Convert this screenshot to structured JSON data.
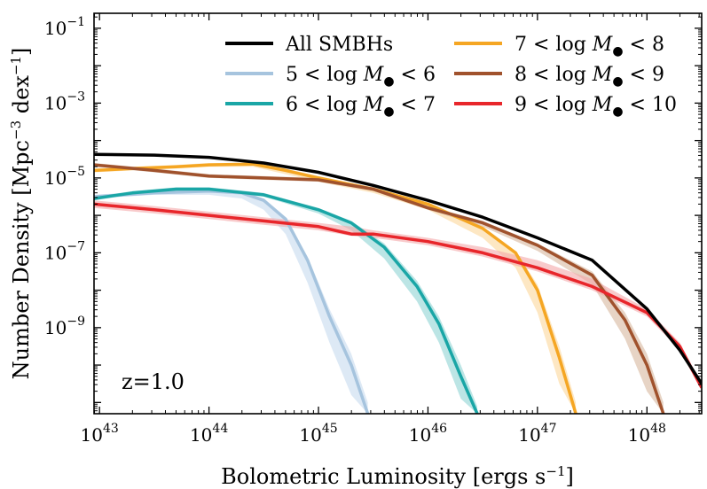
{
  "chart_data": {
    "type": "line",
    "title": "",
    "xlabel": "Bolometric Luminosity [ergs s",
    "xlabel_sup": "−1",
    "xlabel_end": "]",
    "ylabel": "Number Density [Mpc",
    "ylabel_sup1": "−3",
    "ylabel_mid": " dex",
    "ylabel_sup2": "−1",
    "ylabel_end": "]",
    "annotation": "z=1.0",
    "xscale": "log",
    "yscale": "log",
    "xlim_log10": [
      42.95,
      48.5
    ],
    "ylim_log10": [
      -11.3,
      -0.6
    ],
    "x_ticks": [
      {
        "log": 43,
        "mant": "10",
        "exp": "43"
      },
      {
        "log": 44,
        "mant": "10",
        "exp": "44"
      },
      {
        "log": 45,
        "mant": "10",
        "exp": "45"
      },
      {
        "log": 46,
        "mant": "10",
        "exp": "46"
      },
      {
        "log": 47,
        "mant": "10",
        "exp": "47"
      },
      {
        "log": 48,
        "mant": "10",
        "exp": "48"
      }
    ],
    "y_ticks": [
      {
        "log": -1,
        "mant": "10",
        "exp": "−1"
      },
      {
        "log": -3,
        "mant": "10",
        "exp": "−3"
      },
      {
        "log": -5,
        "mant": "10",
        "exp": "−5"
      },
      {
        "log": -7,
        "mant": "10",
        "exp": "−7"
      },
      {
        "log": -9,
        "mant": "10",
        "exp": "−9"
      }
    ],
    "series": [
      {
        "name": "All SMBHs",
        "legend_prefix": "All SMBHs",
        "legend_suffix": "",
        "color": "#000000",
        "band_color": "",
        "x": [
          42.95,
          43.5,
          44.0,
          44.5,
          45.0,
          45.5,
          46.0,
          46.5,
          47.0,
          47.5,
          48.0,
          48.3,
          48.5
        ],
        "y": [
          -4.37,
          -4.39,
          -4.45,
          -4.6,
          -4.85,
          -5.2,
          -5.6,
          -6.05,
          -6.6,
          -7.2,
          -8.5,
          -9.6,
          -10.5
        ]
      },
      {
        "name": "5 < log M < 6",
        "legend_prefix": "5 < log ",
        "legend_suffix": " < 6",
        "color": "#a6c4de",
        "band_color": "#c6dbef",
        "x": [
          42.95,
          43.5,
          44.0,
          44.3,
          44.5,
          44.7,
          44.9,
          45.1,
          45.3,
          45.45
        ],
        "y": [
          -5.5,
          -5.4,
          -5.35,
          -5.4,
          -5.6,
          -6.1,
          -7.2,
          -8.7,
          -10.0,
          -11.3
        ],
        "band_upper": [
          -5.45,
          -5.35,
          -5.3,
          -5.35,
          -5.55,
          -6.05,
          -7.1,
          -8.5,
          -9.7,
          -11.0
        ],
        "band_lower": [
          -5.55,
          -5.45,
          -5.45,
          -5.55,
          -5.85,
          -6.5,
          -7.8,
          -9.4,
          -10.8,
          -11.3
        ]
      },
      {
        "name": "6 < log M < 7",
        "legend_prefix": "6 < log ",
        "legend_suffix": " < 7",
        "color": "#1aa6a6",
        "band_color": "#8fd3d3",
        "x": [
          42.95,
          43.3,
          43.7,
          44.0,
          44.5,
          45.0,
          45.3,
          45.6,
          45.9,
          46.1,
          46.3,
          46.45
        ],
        "y": [
          -5.55,
          -5.4,
          -5.3,
          -5.3,
          -5.45,
          -5.85,
          -6.2,
          -6.85,
          -7.9,
          -8.9,
          -10.3,
          -11.3
        ],
        "band_upper": [
          -5.5,
          -5.35,
          -5.25,
          -5.25,
          -5.4,
          -5.8,
          -6.15,
          -6.75,
          -7.75,
          -8.7,
          -10.0,
          -11.1
        ],
        "band_lower": [
          -5.6,
          -5.45,
          -5.35,
          -5.35,
          -5.5,
          -5.95,
          -6.4,
          -7.15,
          -8.3,
          -9.4,
          -10.9,
          -11.3
        ]
      },
      {
        "name": "7 < log M < 8",
        "legend_prefix": "7 < log ",
        "legend_suffix": " < 8",
        "color": "#f5a623",
        "band_color": "#fcd79b",
        "x": [
          42.95,
          43.3,
          43.7,
          44.0,
          44.4,
          44.7,
          45.0,
          45.5,
          46.0,
          46.5,
          46.8,
          47.0,
          47.2,
          47.35
        ],
        "y": [
          -4.8,
          -4.75,
          -4.7,
          -4.65,
          -4.63,
          -4.8,
          -5.0,
          -5.3,
          -5.7,
          -6.35,
          -7.0,
          -8.0,
          -9.8,
          -11.3
        ],
        "band_upper": [
          -4.75,
          -4.7,
          -4.65,
          -4.6,
          -4.6,
          -4.75,
          -4.95,
          -5.25,
          -5.65,
          -6.3,
          -6.95,
          -7.85,
          -9.5,
          -11.0
        ],
        "band_lower": [
          -4.85,
          -4.8,
          -4.75,
          -4.7,
          -4.7,
          -4.9,
          -5.1,
          -5.4,
          -5.85,
          -6.6,
          -7.4,
          -8.6,
          -10.5,
          -11.3
        ]
      },
      {
        "name": "8 < log M < 9",
        "legend_prefix": "8 < log ",
        "legend_suffix": " < 9",
        "color": "#a0522d",
        "band_color": "#d7b79f",
        "x": [
          42.95,
          43.5,
          44.0,
          44.5,
          45.0,
          45.5,
          46.0,
          46.5,
          47.0,
          47.5,
          47.8,
          48.0,
          48.15
        ],
        "y": [
          -4.65,
          -4.8,
          -4.95,
          -5.0,
          -5.05,
          -5.3,
          -5.8,
          -6.2,
          -6.8,
          -7.6,
          -8.8,
          -10.0,
          -11.3
        ],
        "band_upper": [
          -4.6,
          -4.75,
          -4.9,
          -4.95,
          -5.0,
          -5.25,
          -5.75,
          -6.15,
          -6.75,
          -7.5,
          -8.6,
          -9.7,
          -11.0
        ],
        "band_lower": [
          -4.7,
          -4.85,
          -5.0,
          -5.05,
          -5.1,
          -5.35,
          -5.85,
          -6.3,
          -6.95,
          -7.85,
          -9.3,
          -10.7,
          -11.3
        ]
      },
      {
        "name": "9 < log M < 10",
        "legend_prefix": "9 < log ",
        "legend_suffix": " < 10",
        "color": "#e8262b",
        "band_color": "#f4a6a8",
        "x": [
          42.95,
          43.5,
          44.0,
          44.5,
          45.0,
          45.3,
          45.5,
          46.0,
          46.5,
          47.0,
          47.5,
          48.0,
          48.3,
          48.5
        ],
        "y": [
          -5.7,
          -5.85,
          -6.0,
          -6.15,
          -6.3,
          -6.5,
          -6.5,
          -6.7,
          -7.0,
          -7.4,
          -7.9,
          -8.6,
          -9.5,
          -10.6
        ],
        "band_upper": [
          -5.6,
          -5.75,
          -5.9,
          -6.05,
          -6.2,
          -6.3,
          -6.4,
          -6.6,
          -6.85,
          -7.2,
          -7.7,
          -8.5,
          -9.4,
          -10.5
        ],
        "band_lower": [
          -5.8,
          -5.95,
          -6.1,
          -6.25,
          -6.4,
          -6.55,
          -6.6,
          -6.8,
          -7.1,
          -7.5,
          -8.0,
          -8.7,
          -9.6,
          -10.7
        ]
      }
    ],
    "legend_order": [
      0,
      3,
      1,
      4,
      2,
      5
    ],
    "legend_position": "top-right"
  }
}
